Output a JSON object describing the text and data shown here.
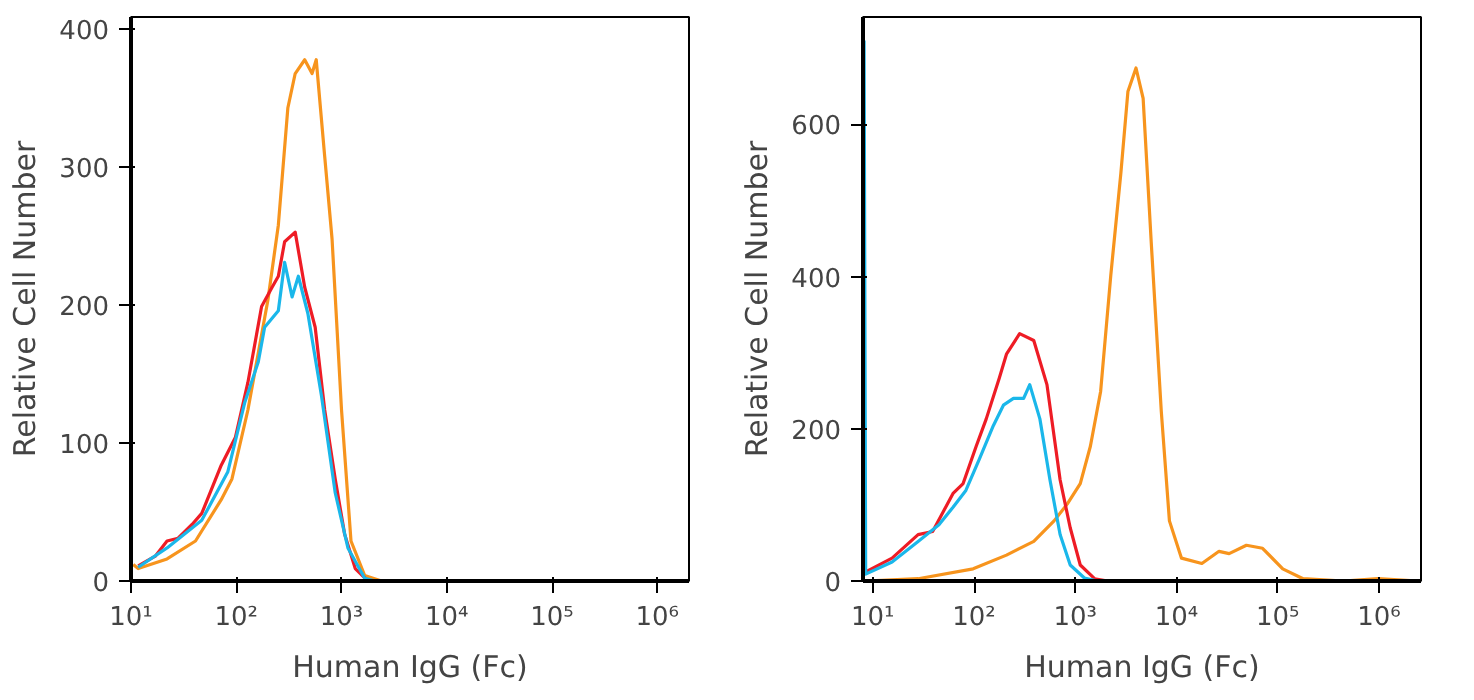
{
  "chart_data": [
    {
      "type": "line",
      "xlabel": "Human IgG (Fc)",
      "ylabel": "Relative Cell Number",
      "log": "x",
      "xlim": [
        10,
        2000000
      ],
      "ylim": [
        0,
        409
      ],
      "xticks": [
        {
          "value": 10,
          "label": "10¹"
        },
        {
          "value": 100,
          "label": "10²"
        },
        {
          "value": 1000,
          "label": "10³"
        },
        {
          "value": 10000,
          "label": "10⁴"
        },
        {
          "value": 100000,
          "label": "10⁵"
        },
        {
          "value": 1000000,
          "label": "10⁶"
        }
      ],
      "yticks": [
        0,
        100,
        200,
        300,
        400
      ],
      "series": [
        {
          "color": "#f7941d",
          "x": [
            10.5,
            11.7,
            22,
            41,
            72,
            91,
            129,
            200,
            251,
            309,
            363,
            447,
            525,
            575,
            692,
            813,
            1000,
            1230,
            1660,
            2400,
            1580000
          ],
          "values": [
            12,
            9,
            16,
            29,
            59,
            74,
            124,
            204,
            258,
            343,
            368,
            378,
            368,
            378,
            308,
            248,
            124,
            29,
            4,
            0,
            0
          ]
        },
        {
          "color": "#ee1c25",
          "x": [
            11.7,
            17,
            22,
            28,
            38,
            47,
            72,
            98,
            129,
            174,
            219,
            251,
            288,
            363,
            447,
            562,
            692,
            871,
            1070,
            1350,
            1780,
            1580000
          ],
          "values": [
            11,
            18,
            29,
            31,
            41,
            49,
            84,
            104,
            144,
            199,
            213,
            221,
            246,
            253,
            213,
            184,
            124,
            74,
            34,
            9,
            0,
            0
          ]
        },
        {
          "color": "#1ab7ea",
          "x": [
            11.7,
            22,
            47,
            83,
            120,
            162,
            186,
            251,
            288,
            339,
            389,
            479,
            646,
            871,
            1150,
            1660,
            2090,
            1580000
          ],
          "values": [
            10,
            24,
            44,
            79,
            129,
            159,
            184,
            196,
            231,
            206,
            221,
            194,
            134,
            64,
            24,
            2,
            0,
            0
          ]
        }
      ]
    },
    {
      "type": "line",
      "xlabel": "Human IgG (Fc)",
      "ylabel": "Relative Cell Number",
      "log": "x",
      "xlim": [
        8,
        2600000
      ],
      "ylim": [
        0,
        741
      ],
      "xticks": [
        {
          "value": 10,
          "label": "10¹"
        },
        {
          "value": 100,
          "label": "10²"
        },
        {
          "value": 1000,
          "label": "10³"
        },
        {
          "value": 10000,
          "label": "10⁴"
        },
        {
          "value": 100000,
          "label": "10⁵"
        },
        {
          "value": 1000000,
          "label": "10⁶"
        }
      ],
      "yticks": [
        0,
        200,
        400,
        600
      ],
      "series": [
        {
          "color": "#f7941d",
          "x": [
            8.5,
            28,
            98,
            209,
            389,
            617,
            832,
            1120,
            1410,
            1780,
            2240,
            2820,
            3310,
            3980,
            4680,
            5620,
            7080,
            8510,
            11200,
            17800,
            26300,
            33100,
            49000,
            70800,
            112000,
            178000,
            447000,
            977000,
            2450000
          ],
          "values": [
            0,
            3,
            16,
            34,
            52,
            79,
            101,
            128,
            177,
            249,
            401,
            536,
            643,
            674,
            634,
            446,
            222,
            79,
            30,
            23,
            39,
            36,
            47,
            43,
            16,
            3,
            0,
            3,
            0
          ]
        },
        {
          "color": "#ee1c25",
          "x": [
            8.5,
            15.5,
            28,
            39,
            62,
            78,
            105,
            132,
            178,
            209,
            282,
            389,
            525,
            708,
            891,
            1120,
            1550,
            2090,
            2450000
          ],
          "values": [
            12,
            30,
            61,
            65,
            115,
            128,
            177,
            213,
            267,
            298,
            325,
            316,
            258,
            133,
            70,
            21,
            3,
            0,
            0
          ]
        },
        {
          "color": "#1ab7ea",
          "x": [
            8.2,
            8.5,
            15.5,
            28,
            45,
            62,
            83,
            112,
            155,
            195,
            245,
            309,
            355,
            447,
            562,
            708,
            891,
            1230,
            1660,
            2450000
          ],
          "values": [
            710,
            9,
            25,
            52,
            74,
            97,
            119,
            159,
            204,
            231,
            240,
            240,
            258,
            213,
            133,
            61,
            21,
            4,
            0,
            0
          ]
        }
      ]
    }
  ]
}
